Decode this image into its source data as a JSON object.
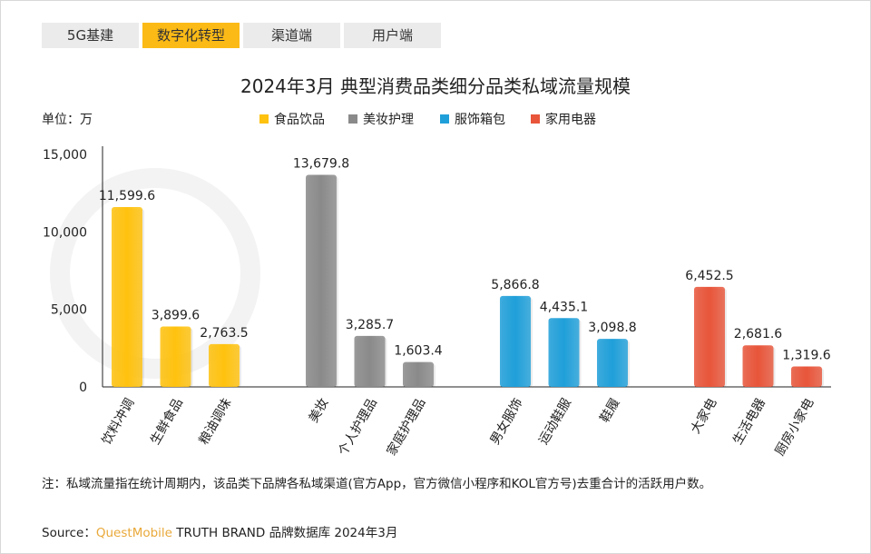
{
  "tabs": [
    {
      "label": "5G基建",
      "active": false
    },
    {
      "label": "数字化转型",
      "active": true
    },
    {
      "label": "渠道端",
      "active": false
    },
    {
      "label": "用户端",
      "active": false
    }
  ],
  "watermark": "QUEST MOBILE",
  "chart_data": {
    "type": "bar",
    "title": "2024年3月 典型消费品类细分品类私域流量规模",
    "unit_label": "单位：万",
    "ylim": [
      0,
      15000
    ],
    "yticks": [
      0,
      5000,
      10000,
      15000
    ],
    "ytick_labels": [
      "0",
      "5,000",
      "10,000",
      "15,000"
    ],
    "legend_position": "top",
    "groups": [
      {
        "name": "食品饮品",
        "color": "#FFC20E",
        "categories": [
          "饮料冲调",
          "生鲜食品",
          "粮油调味"
        ],
        "values": [
          11599.6,
          3899.6,
          2763.5
        ],
        "labels": [
          "11,599.6",
          "3,899.6",
          "2,763.5"
        ]
      },
      {
        "name": "美妆护理",
        "color": "#8A8A8A",
        "categories": [
          "美妆",
          "个人护理品",
          "家庭护理品"
        ],
        "values": [
          13679.8,
          3285.7,
          1603.4
        ],
        "labels": [
          "13,679.8",
          "3,285.7",
          "1,603.4"
        ]
      },
      {
        "name": "服饰箱包",
        "color": "#1F9FD9",
        "categories": [
          "男女服饰",
          "运动鞋服",
          "鞋履"
        ],
        "values": [
          5866.8,
          4435.1,
          3098.8
        ],
        "labels": [
          "5,866.8",
          "4,435.1",
          "3,098.8"
        ]
      },
      {
        "name": "家用电器",
        "color": "#E8553A",
        "categories": [
          "大家电",
          "生活电器",
          "厨房小家电"
        ],
        "values": [
          6452.5,
          2681.6,
          1319.6
        ],
        "labels": [
          "6,452.5",
          "2,681.6",
          "1,319.6"
        ]
      }
    ]
  },
  "note": "注：私域流量指在统计周期内，该品类下品牌各私域渠道(官方App，官方微信小程序和KOL官方号)去重合计的活跃用户数。",
  "source": {
    "prefix": "Source：",
    "brand": "QuestMobile",
    "rest": " TRUTH BRAND 品牌数据库 2024年3月"
  }
}
